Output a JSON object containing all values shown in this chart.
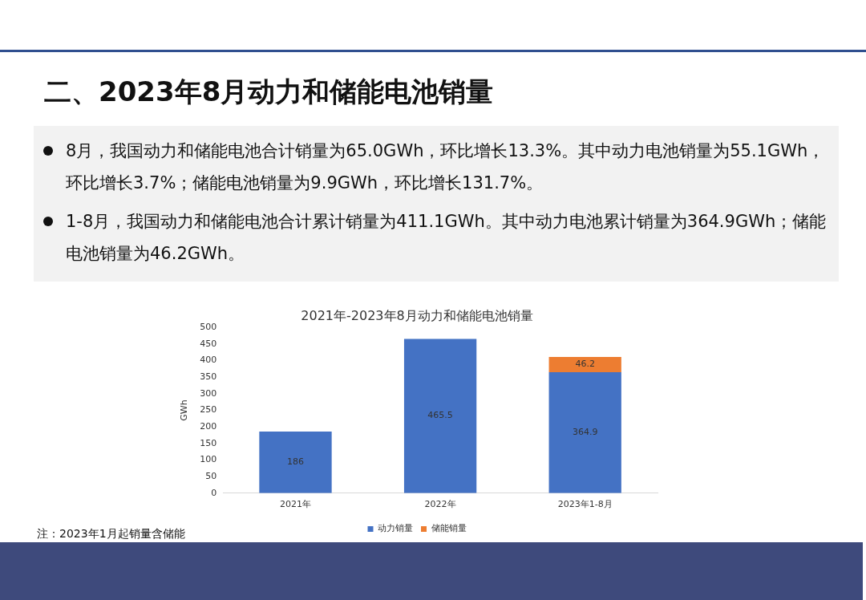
{
  "chart_data": {
    "type": "bar",
    "title": "2021年-2023年8月动力和储能电池销量",
    "ylabel": "GWh",
    "categories": [
      "2021年",
      "2022年",
      "2023年1-8月"
    ],
    "series": [
      {
        "name": "动力销量",
        "color": "#4472c4",
        "values": [
          186,
          465.5,
          364.9
        ]
      },
      {
        "name": "储能销量",
        "color": "#ed7d31",
        "values": [
          null,
          null,
          46.2
        ]
      }
    ],
    "stacked": true,
    "data_labels": true,
    "ylim": [
      0,
      500
    ],
    "yticks": [
      0,
      50,
      100,
      150,
      200,
      250,
      300,
      350,
      400,
      450,
      500
    ],
    "grid": false,
    "legend": "bottom",
    "annotations": [
      "二、2023年8月动力和储能电池销量",
      "8月，我国动力和储能电池合计销量为65.0GWh，环比增长13.3%。其中动力电池销量为55.1GWh，环比增长3.7%；储能电池销量为9.9GWh，环比增长131.7%。",
      "1-8月，我国动力和储能电池合计累计销量为411.1GWh。其中动力电池累计销量为364.9GWh；储能电池销量为46.2GWh。",
      "注：2023年1月起销量含储能"
    ]
  }
}
